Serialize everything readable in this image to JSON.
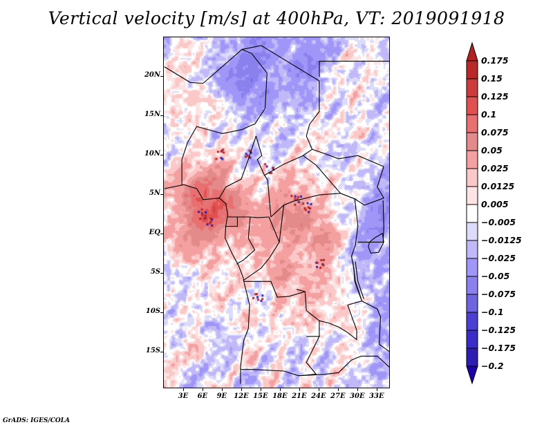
{
  "title": "Vertical velocity [m/s] at 400hPa, VT: 2019091918",
  "credit": "GrADS: IGES/COLA",
  "map": {
    "variable": "Vertical velocity",
    "units": "m/s",
    "level": "400hPa",
    "valid_time": "2019091918",
    "lon_range": [
      0,
      35
    ],
    "lat_range": [
      -19,
      25
    ],
    "y_ticks": [
      {
        "label": "20N",
        "lat": 20
      },
      {
        "label": "15N",
        "lat": 15
      },
      {
        "label": "10N",
        "lat": 10
      },
      {
        "label": "5N",
        "lat": 5
      },
      {
        "label": "EQ",
        "lat": 0
      },
      {
        "label": "5S",
        "lat": -5
      },
      {
        "label": "10S",
        "lat": -10
      },
      {
        "label": "15S",
        "lat": -15
      }
    ],
    "x_ticks": [
      {
        "label": "3E",
        "lon": 3
      },
      {
        "label": "6E",
        "lon": 6
      },
      {
        "label": "9E",
        "lon": 9
      },
      {
        "label": "12E",
        "lon": 12
      },
      {
        "label": "15E",
        "lon": 15
      },
      {
        "label": "18E",
        "lon": 18
      },
      {
        "label": "21E",
        "lon": 21
      },
      {
        "label": "24E",
        "lon": 24
      },
      {
        "label": "27E",
        "lon": 27
      },
      {
        "label": "30E",
        "lon": 30
      },
      {
        "label": "33E",
        "lon": 33
      }
    ]
  },
  "colorbar": {
    "labels": [
      "0.175",
      "0.15",
      "0.125",
      "0.1",
      "0.075",
      "0.05",
      "0.025",
      "0.0125",
      "0.005",
      "−0.005",
      "−0.0125",
      "−0.025",
      "−0.05",
      "−0.075",
      "−0.1",
      "−0.125",
      "−0.175",
      "−0.2"
    ],
    "levels": [
      0.175,
      0.15,
      0.125,
      0.1,
      0.075,
      0.05,
      0.025,
      0.0125,
      0.005,
      -0.005,
      -0.0125,
      -0.025,
      -0.05,
      -0.075,
      -0.1,
      -0.125,
      -0.175,
      -0.2
    ],
    "colors_top_to_bottom": [
      "#b22222",
      "#b82a2a",
      "#cc3c3c",
      "#e05252",
      "#e87070",
      "#e38a8a",
      "#f4a0a0",
      "#fbc8c8",
      "#fde4e4",
      "#ffffff",
      "#dcdcfa",
      "#c0b8f8",
      "#a096f8",
      "#8a80ee",
      "#6e64e0",
      "#4c40d2",
      "#3a2cc6",
      "#2c1eb0",
      "#2000a8"
    ],
    "extend_top_color": "#b22222",
    "extend_bottom_color": "#2000a8"
  }
}
